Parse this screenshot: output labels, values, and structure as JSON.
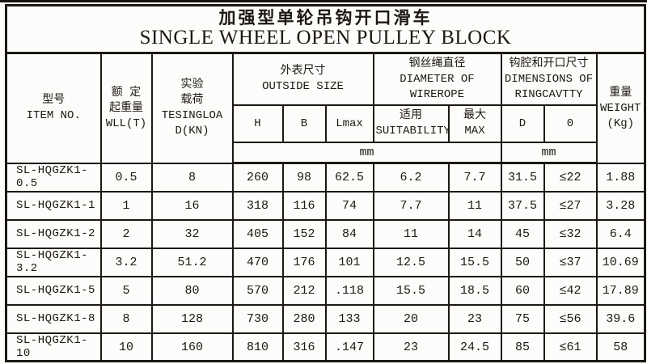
{
  "title": {
    "zh": "加强型单轮吊钩开口滑车",
    "en": "SINGLE WHEEL OPEN PULLEY BLOCK"
  },
  "header": {
    "item": {
      "lines": [
        "型号",
        "ITEM NO."
      ]
    },
    "wll": {
      "lines": [
        "额 定",
        "起重量",
        "WLL(T)"
      ]
    },
    "test_load": {
      "lines": [
        "实验",
        "载荷",
        "TESINGLOA",
        "D(KN)"
      ]
    },
    "outside_size": {
      "lines": [
        "外表尺寸",
        "OUTSIDE SIZE"
      ]
    },
    "wirerope": {
      "lines": [
        "钢丝绳直径",
        "DIAMETER OF",
        "WIREROPE"
      ]
    },
    "ring_cavity": {
      "lines": [
        "钩腔和开口尺寸",
        "DIMENSIONS OF",
        "RINGCAVTTY"
      ]
    },
    "weight": {
      "lines": [
        "重量",
        "WEIGHT",
        "(Kg)"
      ]
    },
    "sub": {
      "h": "H",
      "b": "B",
      "lmax": "Lmax",
      "suitability_lines": [
        "适用",
        "SUITABILITY"
      ],
      "max_lines": [
        "最大",
        "MAX"
      ],
      "d": "D",
      "o": "0"
    },
    "unit_mm_size": "mm",
    "unit_mm_cavity": "mm"
  },
  "col_ids": [
    "item-no",
    "wll",
    "test-load",
    "h",
    "b",
    "lmax",
    "suitability",
    "max",
    "d",
    "o",
    "weight"
  ],
  "rows": [
    [
      "SL-HQGZK1-0.5",
      "0.5",
      "8",
      "260",
      "98",
      "62.5",
      "6.2",
      "7.7",
      "31.5",
      "≤22",
      "1.88"
    ],
    [
      "SL-HQGZK1-1",
      "1",
      "16",
      "318",
      "116",
      "74",
      "7.7",
      "11",
      "37.5",
      "≤27",
      "3.28"
    ],
    [
      "SL-HQGZK1-2",
      "2",
      "32",
      "405",
      "152",
      "84",
      "11",
      "14",
      "45",
      "≤32",
      "6.4"
    ],
    [
      "SL-HQGZK1-3.2",
      "3.2",
      "51.2",
      "470",
      "176",
      "101",
      "12.5",
      "15.5",
      "50",
      "≤37",
      "10.69"
    ],
    [
      "SL-HQGZK1-5",
      "5",
      "80",
      "570",
      "212",
      ".118",
      "15.5",
      "18.5",
      "60",
      "≤42",
      "17.89"
    ],
    [
      "SL-HQGZK1-8",
      "8",
      "128",
      "730",
      "280",
      "133",
      "20",
      "23",
      "75",
      "≤56",
      "39.6"
    ],
    [
      "SL-HQGZK1-10",
      "10",
      "160",
      "810",
      "316",
      ".147",
      "23",
      "24.5",
      "85",
      "≤61",
      "58"
    ]
  ],
  "colors": {
    "line": "#1d1814",
    "text": "#1d1814",
    "background": "#fcfcfa"
  }
}
